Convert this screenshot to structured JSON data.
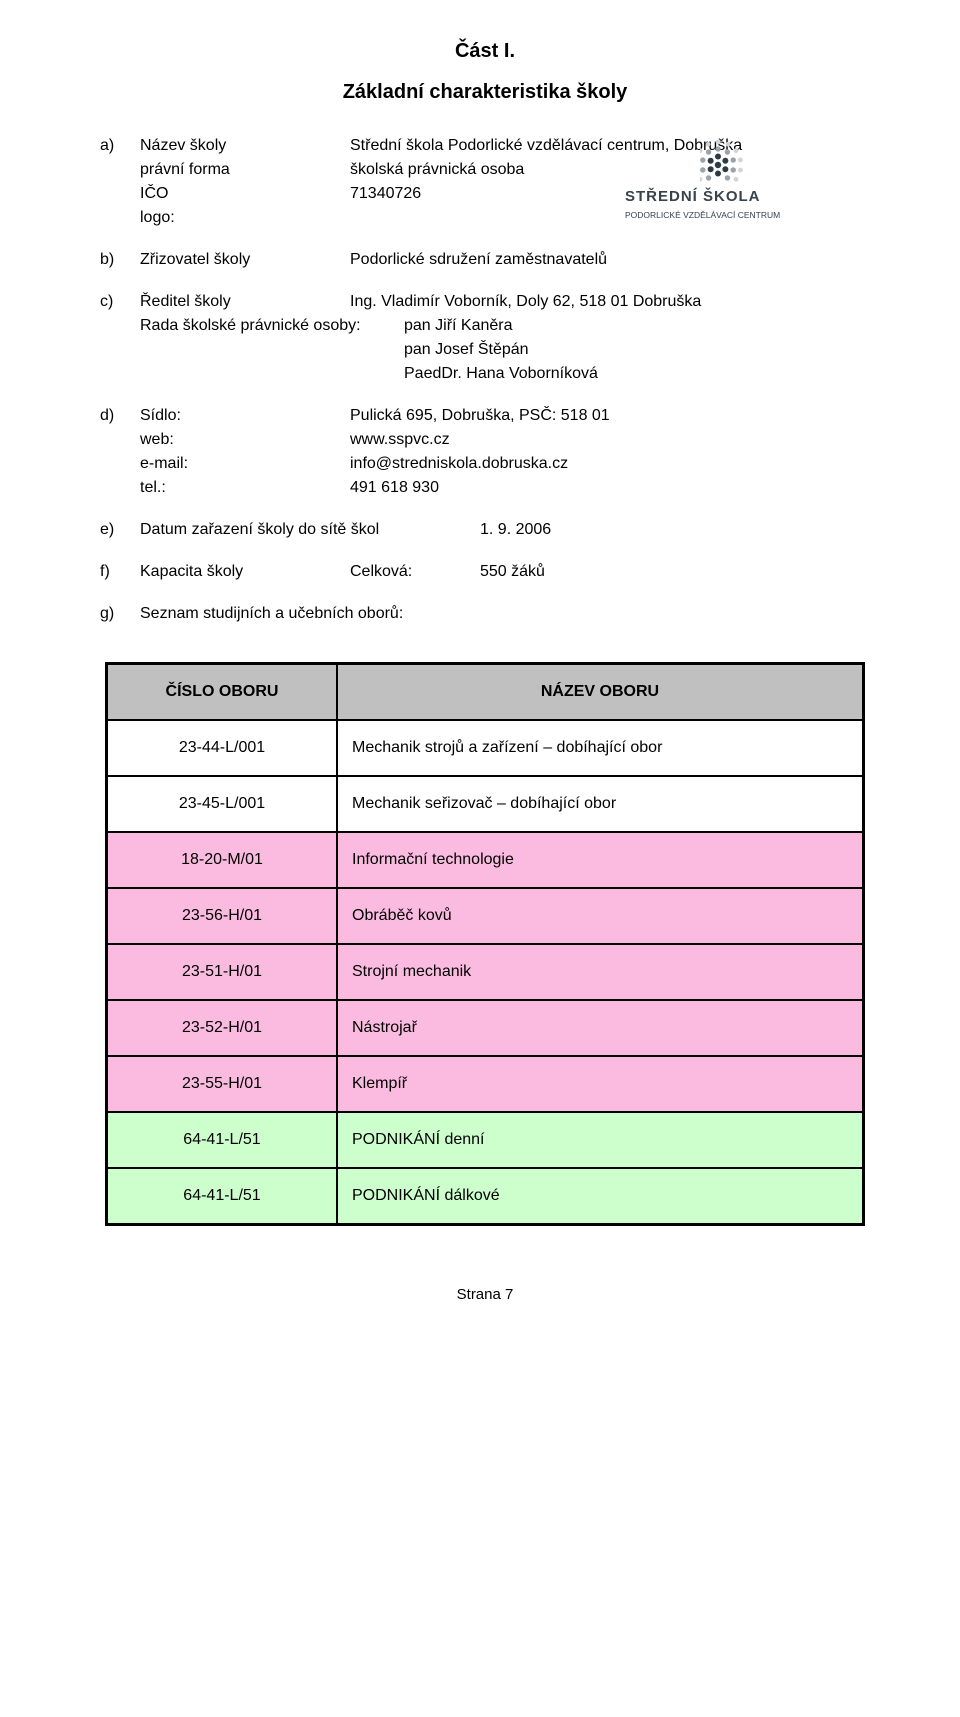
{
  "title_part": "Část I.",
  "subtitle": "Základní charakteristika školy",
  "a": {
    "letter": "a)",
    "rows": [
      {
        "label": "Název školy",
        "value": "Střední škola Podorlické vzdělávací centrum, Dobruška"
      },
      {
        "label": "právní forma",
        "value": "školská právnická osoba"
      },
      {
        "label": "IČO",
        "value": "71340726"
      },
      {
        "label": "logo:",
        "value": ""
      }
    ]
  },
  "logo": {
    "line1": "STŘEDNÍ ŠKOLA",
    "line2": "PODORLICKÉ VZDĚLÁVACÍ CENTRUM",
    "dot_colors": {
      "inner": "#2e3a44",
      "mid": "#9aa3aa",
      "outer": "#cfd5da"
    }
  },
  "b": {
    "letter": "b)",
    "label": "Zřizovatel školy",
    "value": "Podorlické sdružení zaměstnavatelů"
  },
  "c": {
    "letter": "c)",
    "label": "Ředitel školy",
    "value": "Ing. Vladimír Voborník, Doly 62, 518 01 Dobruška",
    "rada_label": "Rada školské právnické osoby:",
    "rada_values": [
      "pan Jiří Kaněra",
      "pan Josef Štěpán",
      "PaedDr. Hana Voborníková"
    ]
  },
  "d": {
    "letter": "d)",
    "rows": [
      {
        "label": "Sídlo:",
        "value": "Pulická 695, Dobruška, PSČ: 518 01"
      },
      {
        "label": "web:",
        "value": "www.sspvc.cz"
      },
      {
        "label": "e-mail:",
        "value": "info@stredniskola.dobruska.cz"
      },
      {
        "label": "tel.:",
        "value": "491 618 930"
      }
    ]
  },
  "e": {
    "letter": "e)",
    "label": "Datum zařazení školy do sítě škol",
    "value": "1. 9. 2006"
  },
  "f": {
    "letter": "f)",
    "label1": "Kapacita školy",
    "label2": "Celková:",
    "value": "550 žáků"
  },
  "g": {
    "letter": "g)",
    "label": "Seznam studijních a učebních oborů:"
  },
  "table": {
    "header_bg": "#c0c0c0",
    "row_colors": {
      "pink": "#fbbbe0",
      "green": "#ccffcc",
      "white": "#ffffff"
    },
    "headers": {
      "code": "ČÍSLO OBORU",
      "name": "NÁZEV OBORU"
    },
    "rows": [
      {
        "code": "23-44-L/001",
        "name": "Mechanik strojů a zařízení – dobíhající obor",
        "bg": "white"
      },
      {
        "code": "23-45-L/001",
        "name": "Mechanik seřizovač – dobíhající obor",
        "bg": "white"
      },
      {
        "code": "18-20-M/01",
        "name": "Informační technologie",
        "bg": "pink"
      },
      {
        "code": "23-56-H/01",
        "name": "Obráběč kovů",
        "bg": "pink"
      },
      {
        "code": "23-51-H/01",
        "name": "Strojní mechanik",
        "bg": "pink"
      },
      {
        "code": "23-52-H/01",
        "name": "Nástrojař",
        "bg": "pink"
      },
      {
        "code": "23-55-H/01",
        "name": "Klempíř",
        "bg": "pink"
      },
      {
        "code": "64-41-L/51",
        "name": "PODNIKÁNÍ  denní",
        "bg": "green"
      },
      {
        "code": "64-41-L/51",
        "name": "PODNIKÁNÍ  dálkové",
        "bg": "green"
      }
    ]
  },
  "footer": "Strana 7"
}
